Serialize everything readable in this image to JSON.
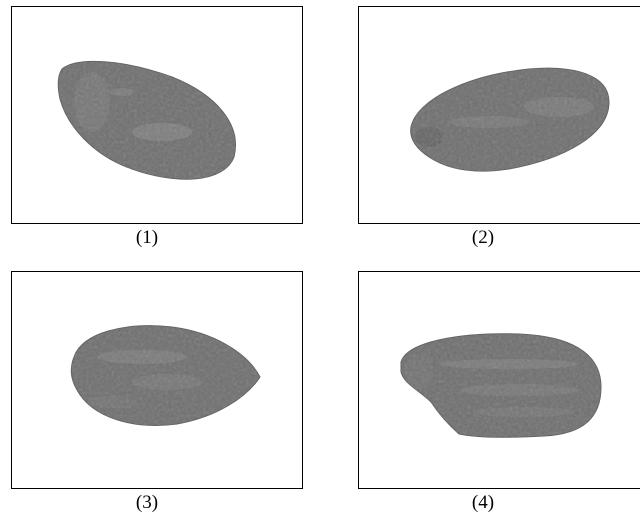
{
  "figure": {
    "panels": [
      {
        "caption": "(1)",
        "subject": "seed-photo"
      },
      {
        "caption": "(2)",
        "subject": "seed-photo"
      },
      {
        "caption": "(3)",
        "subject": "seed-photo"
      },
      {
        "caption": "(4)",
        "subject": "seed-photo"
      }
    ],
    "colors": {
      "background": "#ffffff",
      "border": "#000000",
      "seed_base": "#6e6e6e",
      "seed_speckle": "#8c8c8c",
      "seed_shadow": "#5a5a5a"
    }
  }
}
